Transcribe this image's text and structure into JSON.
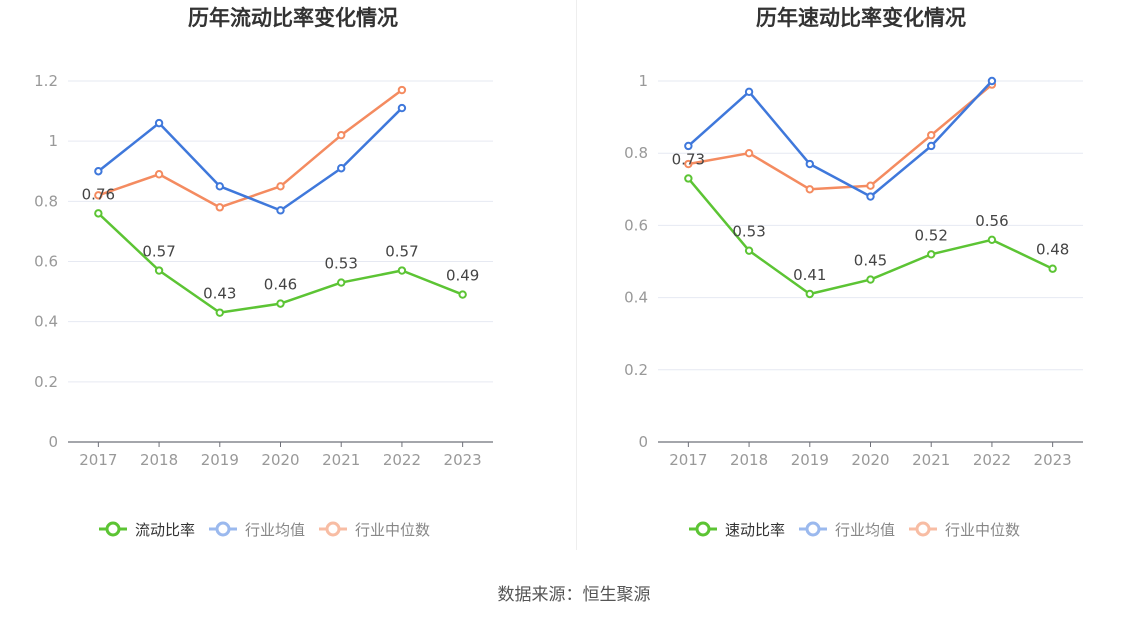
{
  "source_text": "数据来源：恒生聚源",
  "colors": {
    "main": "#5CC434",
    "avg": "#3F78DB",
    "median": "#F48B60",
    "grid": "#E6E9F2",
    "axis": "#6E7079",
    "label": "#999999"
  },
  "chart_data": [
    {
      "type": "line",
      "title": "历年流动比率变化情况",
      "categories": [
        "2017",
        "2018",
        "2019",
        "2020",
        "2021",
        "2022",
        "2023"
      ],
      "ylim": [
        0,
        1.2
      ],
      "yticks": [
        "0",
        "0.2",
        "0.4",
        "0.6",
        "0.8",
        "1",
        "1.2"
      ],
      "series": [
        {
          "name": "流动比率",
          "values": [
            0.76,
            0.57,
            0.43,
            0.46,
            0.53,
            0.57,
            0.49
          ],
          "labels": [
            "0.76",
            "0.57",
            "0.43",
            "0.46",
            "0.53",
            "0.57",
            "0.49"
          ]
        },
        {
          "name": "行业均值",
          "values": [
            0.9,
            1.06,
            0.85,
            0.77,
            0.91,
            1.11,
            null
          ]
        },
        {
          "name": "行业中位数",
          "values": [
            0.82,
            0.89,
            0.78,
            0.85,
            1.02,
            1.17,
            null
          ]
        }
      ]
    },
    {
      "type": "line",
      "title": "历年速动比率变化情况",
      "categories": [
        "2017",
        "2018",
        "2019",
        "2020",
        "2021",
        "2022",
        "2023"
      ],
      "ylim": [
        0,
        1
      ],
      "yticks": [
        "0",
        "0.2",
        "0.4",
        "0.6",
        "0.8",
        "1"
      ],
      "series": [
        {
          "name": "速动比率",
          "values": [
            0.73,
            0.53,
            0.41,
            0.45,
            0.52,
            0.56,
            0.48
          ],
          "labels": [
            "0.73",
            "0.53",
            "0.41",
            "0.45",
            "0.52",
            "0.56",
            "0.48"
          ]
        },
        {
          "name": "行业均值",
          "values": [
            0.82,
            0.97,
            0.77,
            0.68,
            0.82,
            1.0,
            null
          ]
        },
        {
          "name": "行业中位数",
          "values": [
            0.77,
            0.8,
            0.7,
            0.71,
            0.85,
            0.99,
            null
          ]
        }
      ]
    }
  ]
}
